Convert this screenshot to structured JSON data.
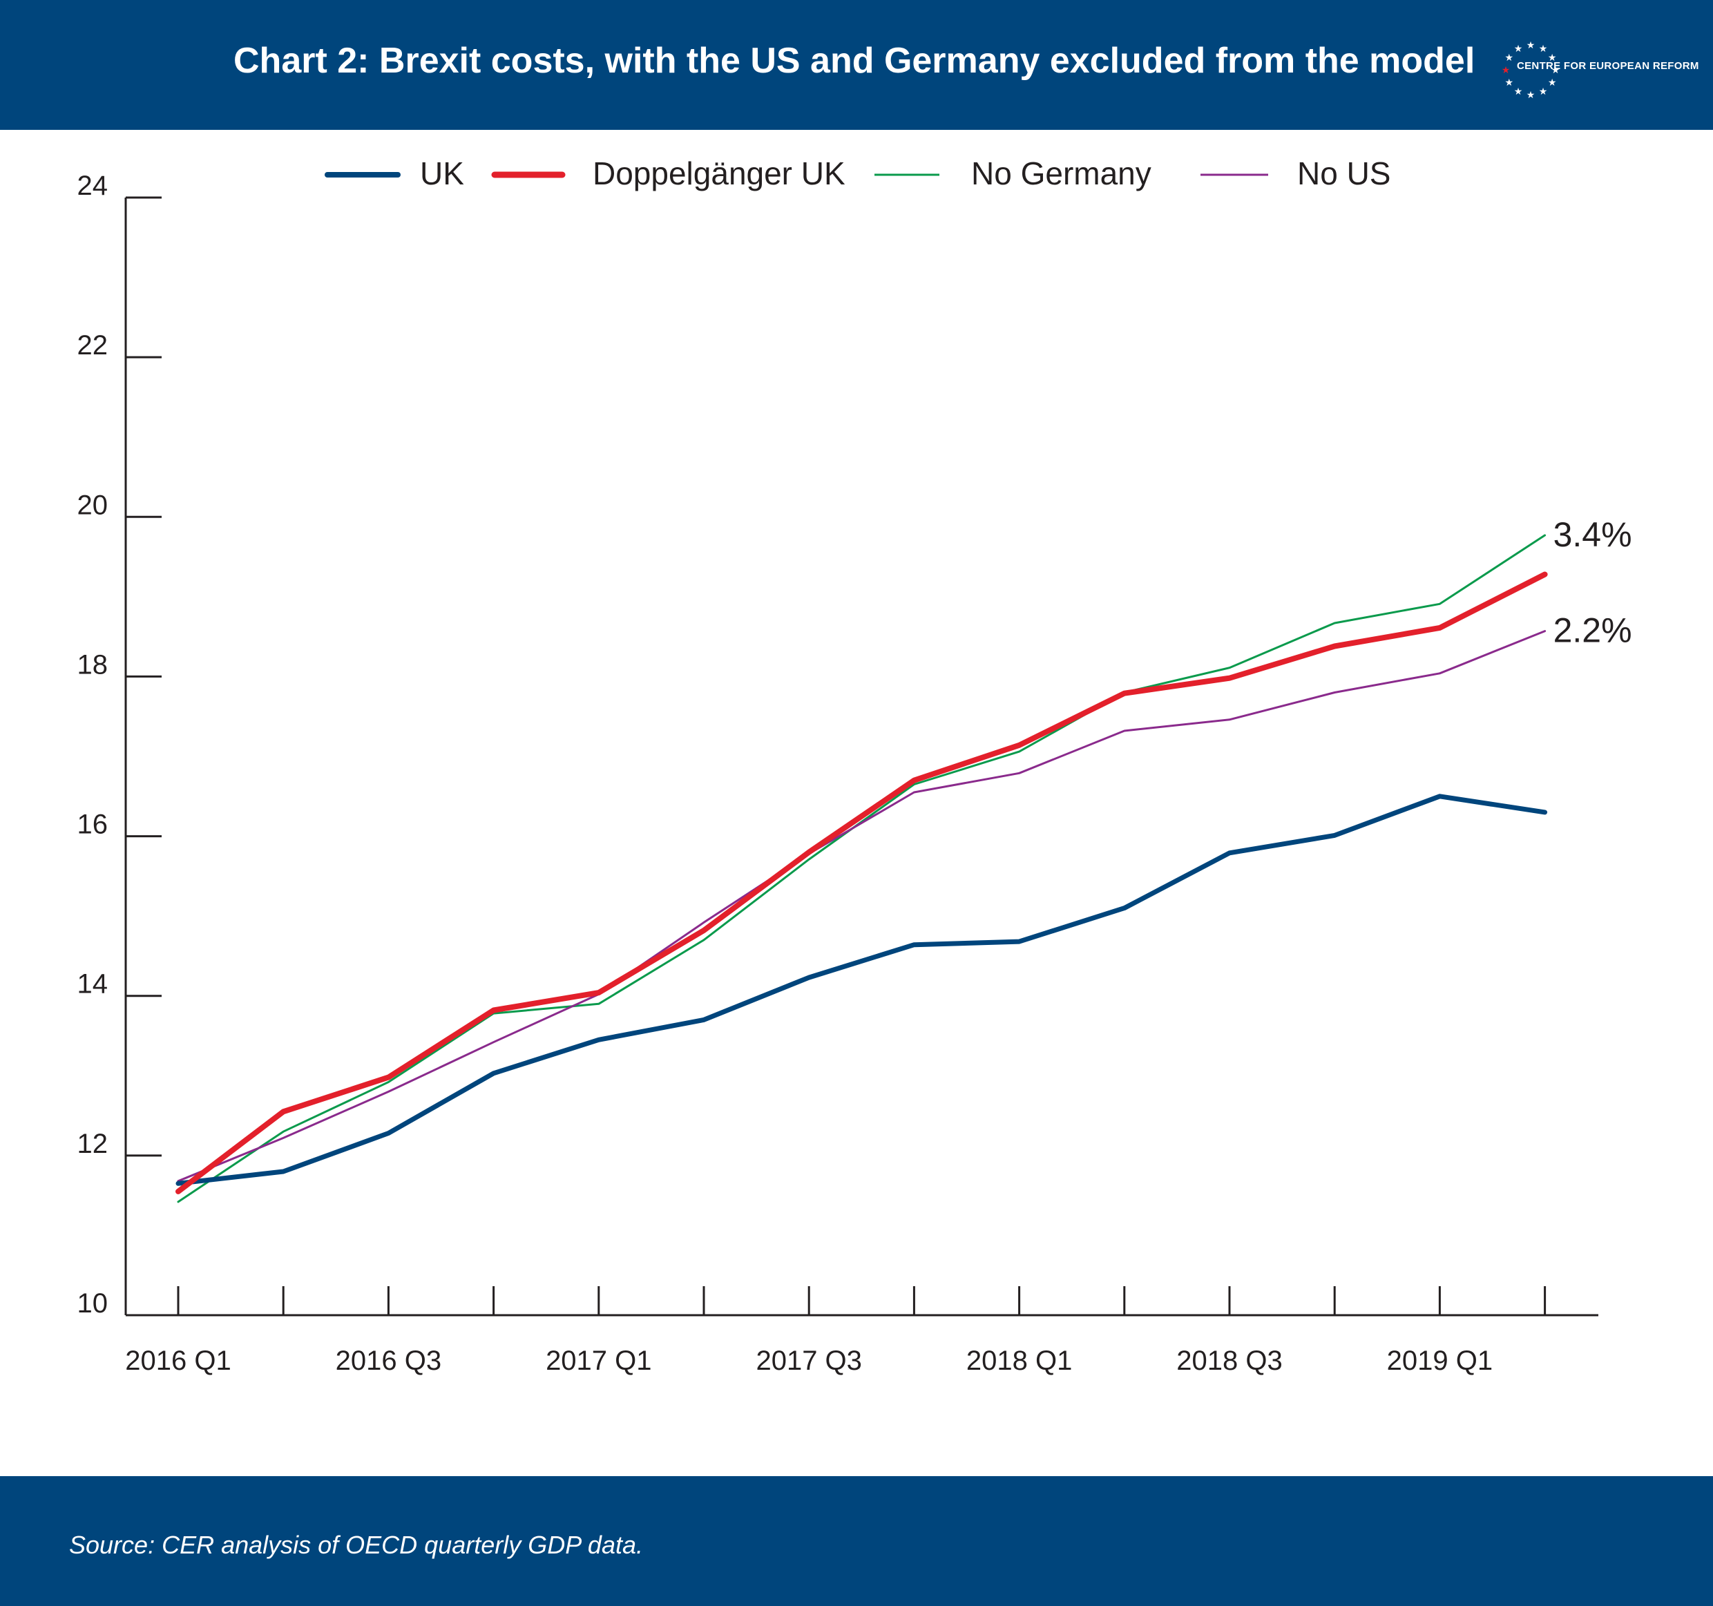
{
  "header": {
    "title": "Chart 2: Brexit costs, with the US and Germany excluded from the model",
    "logo_text": "CENTRE FOR EUROPEAN REFORM",
    "background": "#00457c"
  },
  "footer": {
    "source": "Source: CER analysis of OECD quarterly GDP data."
  },
  "legend": [
    {
      "label": "UK",
      "color": "#00457c"
    },
    {
      "label": "Doppelgänger UK",
      "color": "#e3202b"
    },
    {
      "label": "No Germany",
      "color": "#0a9a4c"
    },
    {
      "label": "No US",
      "color": "#8a2a8c"
    }
  ],
  "chart_data": {
    "type": "line",
    "x": [
      "2016 Q1",
      "2016 Q2",
      "2016 Q3",
      "2016 Q4",
      "2017 Q1",
      "2017 Q2",
      "2017 Q3",
      "2017 Q4",
      "2018 Q1",
      "2018 Q2",
      "2018 Q3",
      "2018 Q4",
      "2019 Q1",
      "2019 Q2"
    ],
    "x_tick_labels": [
      "2016 Q1",
      "2016 Q3",
      "2017 Q1",
      "2017 Q3",
      "2018 Q1",
      "2018 Q3",
      "2019 Q1"
    ],
    "y_ticks": [
      "10",
      "12",
      "14",
      "16",
      "18",
      "20",
      "22",
      "24"
    ],
    "ylim": [
      10,
      24
    ],
    "series": [
      {
        "name": "UK",
        "color": "#00457c",
        "width": 7,
        "values": [
          11.65,
          11.8,
          12.28,
          13.03,
          13.45,
          13.7,
          14.23,
          14.64,
          14.68,
          15.1,
          15.79,
          16.01,
          16.5,
          16.3
        ]
      },
      {
        "name": "Doppelgänger UK",
        "color": "#e3202b",
        "width": 8,
        "values": [
          11.55,
          12.55,
          12.98,
          13.82,
          14.04,
          14.82,
          15.8,
          16.7,
          17.14,
          17.79,
          17.98,
          18.38,
          18.61,
          19.28
        ]
      },
      {
        "name": "No Germany",
        "color": "#0a9a4c",
        "width": 3,
        "values": [
          11.42,
          12.3,
          12.92,
          13.78,
          13.9,
          14.7,
          15.71,
          16.65,
          17.06,
          17.8,
          18.11,
          18.67,
          18.91,
          19.77
        ]
      },
      {
        "name": "No US",
        "color": "#8a2a8c",
        "width": 3,
        "values": [
          11.68,
          12.22,
          12.8,
          13.42,
          14.02,
          14.92,
          15.78,
          16.55,
          16.79,
          17.32,
          17.46,
          17.8,
          18.04,
          18.57
        ]
      }
    ],
    "annotations": [
      {
        "text": "3.4%",
        "series": "No Germany"
      },
      {
        "text": "2.2%",
        "series": "No US"
      }
    ],
    "grid": false,
    "legend_position": "top"
  }
}
